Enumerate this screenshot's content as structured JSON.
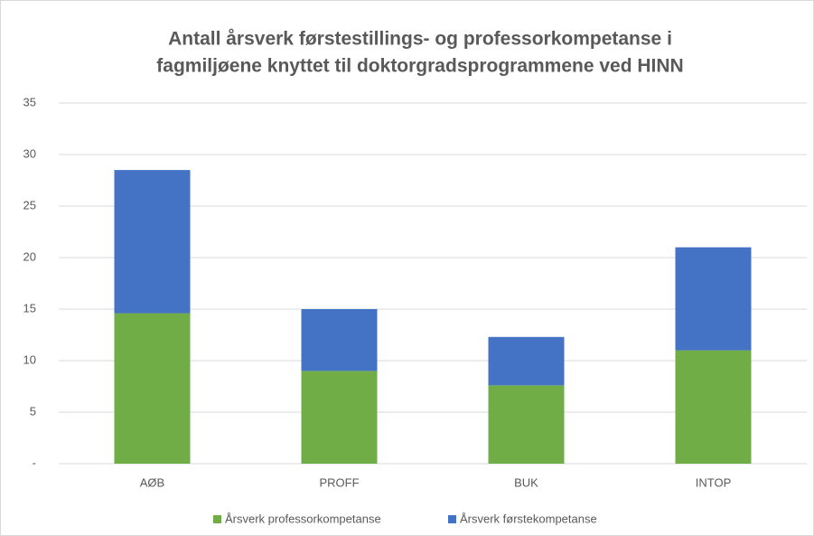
{
  "chart_data": {
    "type": "stacked_bar",
    "title": [
      "Antall årsverk førstestillings- og professorkompetanse i",
      "fagmiljøene knyttet til doktorgradsprogrammene ved HINN"
    ],
    "categories": [
      "AØB",
      "PROFF",
      "BUK",
      "INTOP"
    ],
    "series": [
      {
        "name": "Årsverk professorkompetanse",
        "color": "#70ad47",
        "values": [
          14.6,
          9.0,
          7.6,
          11.0
        ]
      },
      {
        "name": "Årsverk førstekompetanse",
        "color": "#4472c4",
        "values": [
          13.9,
          6.0,
          4.7,
          10.0
        ]
      }
    ],
    "ylim": [
      0,
      35
    ],
    "yticks": [
      {
        "value": 0,
        "label": "-"
      },
      5,
      10,
      15,
      20,
      25,
      30,
      35
    ],
    "grid": true,
    "legend": "bottom"
  }
}
